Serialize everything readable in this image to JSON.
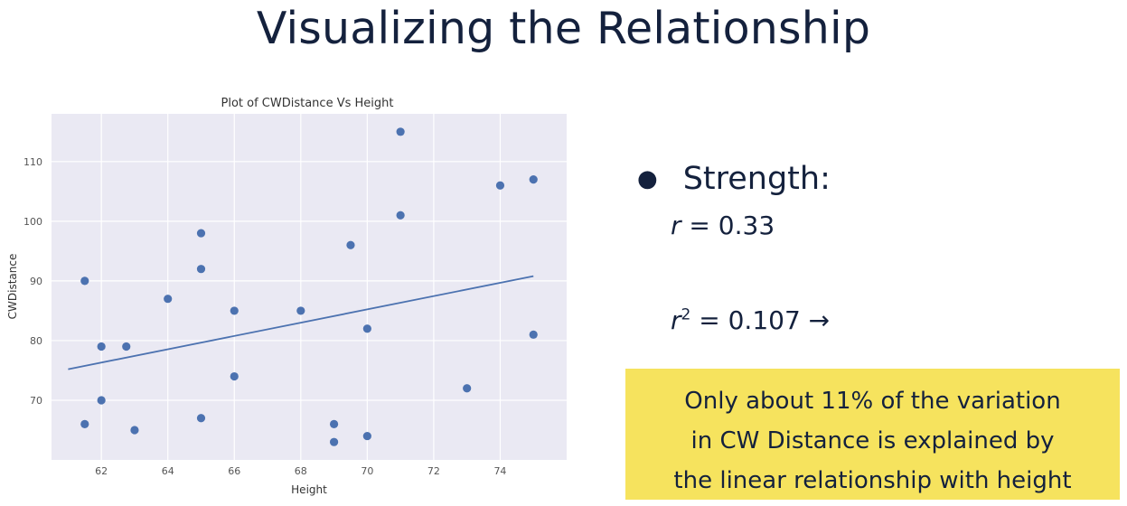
{
  "slide": {
    "title": "Visualizing the Relationship"
  },
  "bullets": {
    "strength_label": "Strength:",
    "r_symbol": "r",
    "r_value": "= 0.33",
    "r2_symbol": "r",
    "r2_exponent": "2",
    "r2_value": "= 0.107 →"
  },
  "callout": {
    "lines": [
      "Only about 11% of the variation",
      "in CW Distance is explained by",
      "the linear relationship with height"
    ],
    "background": "#f6e35e"
  },
  "colors": {
    "text": "#14213d",
    "plot_background": "#eae9f3",
    "point": "#4c72b0",
    "line": "#4c72b0"
  },
  "chart_data": {
    "type": "scatter",
    "title": "Plot of CWDistance Vs Height",
    "xlabel": "Height",
    "ylabel": "CWDistance",
    "xlim": [
      60.5,
      76
    ],
    "ylim": [
      60,
      118
    ],
    "xticks": [
      62,
      64,
      66,
      68,
      70,
      72,
      74
    ],
    "yticks": [
      70,
      80,
      90,
      100,
      110
    ],
    "grid": true,
    "points": [
      {
        "x": 61.5,
        "y": 90
      },
      {
        "x": 61.5,
        "y": 66
      },
      {
        "x": 62,
        "y": 79
      },
      {
        "x": 62,
        "y": 70
      },
      {
        "x": 62.75,
        "y": 79
      },
      {
        "x": 63,
        "y": 65
      },
      {
        "x": 64,
        "y": 87
      },
      {
        "x": 65,
        "y": 98
      },
      {
        "x": 65,
        "y": 92
      },
      {
        "x": 65,
        "y": 67
      },
      {
        "x": 66,
        "y": 85
      },
      {
        "x": 66,
        "y": 74
      },
      {
        "x": 68,
        "y": 85
      },
      {
        "x": 69,
        "y": 66
      },
      {
        "x": 69,
        "y": 63
      },
      {
        "x": 69.5,
        "y": 96
      },
      {
        "x": 70,
        "y": 82
      },
      {
        "x": 70,
        "y": 64
      },
      {
        "x": 71,
        "y": 115
      },
      {
        "x": 71,
        "y": 101
      },
      {
        "x": 73,
        "y": 72
      },
      {
        "x": 74,
        "y": 106
      },
      {
        "x": 75,
        "y": 107
      },
      {
        "x": 75,
        "y": 81
      }
    ],
    "regression_line": {
      "x": [
        61,
        75
      ],
      "y": [
        75.2,
        90.8
      ]
    }
  }
}
